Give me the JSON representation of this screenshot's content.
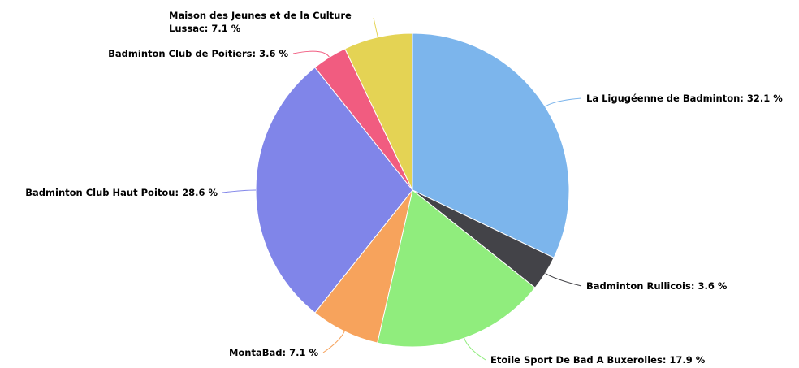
{
  "chart_data": {
    "type": "pie",
    "categories": [
      "La Ligugéenne de Badminton",
      "Badminton Rullicois",
      "Etoile Sport De Bad A Buxerolles",
      "MontaBad",
      "Badminton Club Haut Poitou",
      "Badminton Club de Poitiers",
      "Maison des Jeunes et de la Culture Lussac"
    ],
    "values": [
      32.1,
      3.6,
      17.9,
      7.1,
      28.6,
      3.6,
      7.1
    ],
    "value_labels": [
      "32.1 %",
      "3.6 %",
      "17.9 %",
      "7.1 %",
      "28.6 %",
      "3.6 %",
      "7.1 %"
    ],
    "label_separator": ": ",
    "colors": [
      "#7cb5ec",
      "#434348",
      "#90ed7d",
      "#f7a35c",
      "#8085e9",
      "#f15c80",
      "#e4d354"
    ]
  }
}
